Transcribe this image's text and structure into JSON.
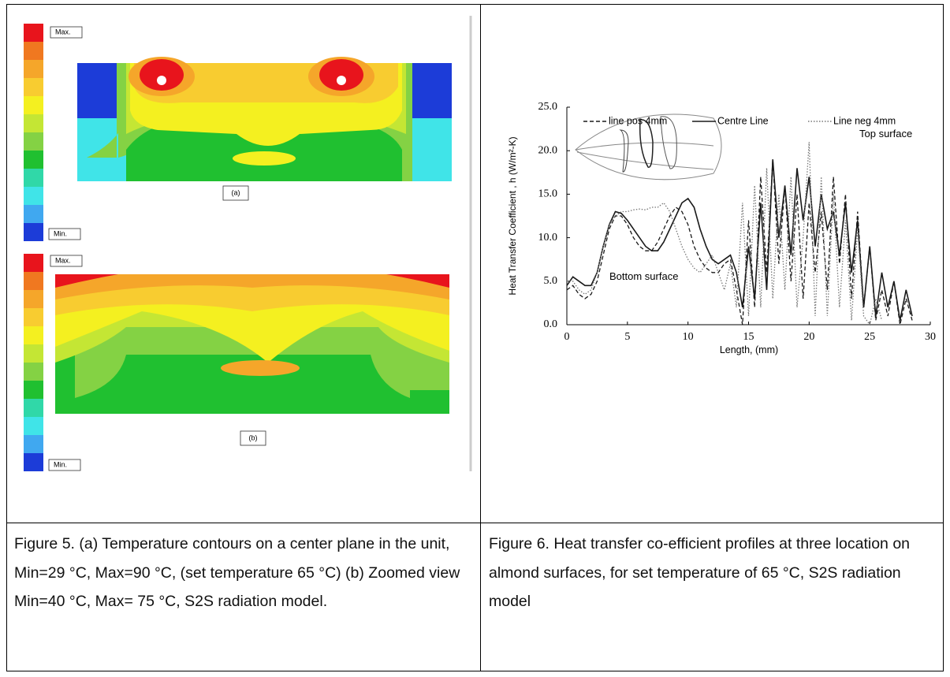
{
  "figure5": {
    "panels": [
      {
        "max_label": "Max.",
        "min_label": "Min.",
        "tag": "(a)"
      },
      {
        "max_label": "Max.",
        "min_label": "Min.",
        "tag": "(b)"
      }
    ]
  },
  "chart_data": {
    "type": "line",
    "x_label": "Length, (mm)",
    "y_label": "Heat Transfer Coefficient , h (W/m²-K)",
    "annotations": [
      "Top surface",
      "Bottom surface"
    ],
    "xlim": [
      0,
      30
    ],
    "xticks": [
      0,
      5,
      10,
      15,
      20,
      25,
      30
    ],
    "ylim": [
      0,
      25
    ],
    "yticks": [
      {
        "value": 0,
        "label": "0.0"
      },
      {
        "value": 5,
        "label": "5.0"
      },
      {
        "value": 10,
        "label": "10.0"
      },
      {
        "value": 15,
        "label": "15.0"
      },
      {
        "value": 20,
        "label": "20.0"
      },
      {
        "value": 25,
        "label": "25.0"
      }
    ],
    "grid": false,
    "x": [
      0,
      0.5,
      1,
      1.5,
      2,
      2.5,
      3,
      3.5,
      4,
      4.5,
      5,
      5.5,
      6,
      6.5,
      7,
      7.5,
      8,
      8.5,
      9,
      9.5,
      10,
      10.5,
      11,
      11.5,
      12,
      12.5,
      13,
      13.5,
      14,
      14.5,
      15,
      15.5,
      16,
      16.5,
      17,
      17.5,
      18,
      18.5,
      19,
      19.5,
      20,
      20.5,
      21,
      21.5,
      22,
      22.5,
      23,
      23.5,
      24,
      24.5,
      25,
      25.5,
      26,
      26.5,
      27,
      27.5,
      28,
      28.5
    ],
    "series": [
      {
        "name": "line pos 4mm",
        "color": "#1a1a1a",
        "dash": "dashed",
        "values": [
          4,
          4.5,
          3.5,
          3,
          3.5,
          5,
          8,
          11,
          12.5,
          12.5,
          11.5,
          10,
          9,
          8.5,
          8.5,
          9.5,
          11,
          12.5,
          13.5,
          13,
          11.5,
          9,
          7.5,
          6.5,
          6,
          6,
          7,
          7.5,
          4,
          0,
          12,
          2,
          17,
          6,
          19,
          7,
          16,
          5,
          15,
          3,
          14,
          6,
          13,
          4,
          17,
          7,
          15,
          3,
          13,
          2,
          9,
          0.5,
          4,
          1,
          5,
          0,
          3,
          0.5
        ]
      },
      {
        "name": "Centre Line",
        "color": "#1a1a1a",
        "dash": "solid",
        "values": [
          4.5,
          5.5,
          5,
          4.5,
          4.5,
          6,
          9,
          11.5,
          13,
          12.8,
          12,
          11,
          10,
          9,
          8.5,
          8.5,
          9.5,
          11,
          12.5,
          14,
          14.5,
          13.5,
          11,
          9,
          7.5,
          7,
          7.5,
          8,
          6,
          2,
          9,
          3,
          14,
          4,
          19,
          10,
          16,
          8,
          18,
          12,
          17,
          9,
          15,
          11,
          13,
          8,
          14,
          6,
          12,
          2,
          9,
          1,
          6,
          2,
          5,
          0.5,
          4,
          1
        ]
      },
      {
        "name": "Line neg 4mm",
        "color": "#777777",
        "dash": "dotted",
        "values": [
          5,
          5,
          4,
          3.5,
          4,
          6,
          9,
          11.5,
          12.5,
          13,
          13,
          13.2,
          13.3,
          13.2,
          13.5,
          13.5,
          14,
          13,
          11,
          9,
          7.5,
          6.5,
          6,
          7,
          8,
          6,
          4,
          7,
          2,
          14,
          1,
          16,
          2,
          18,
          3,
          15,
          4,
          17,
          2,
          10,
          21,
          1,
          17,
          1,
          15,
          2,
          12,
          0.5,
          11,
          1,
          0,
          3,
          0.5,
          null,
          null,
          null,
          null,
          null
        ]
      }
    ]
  },
  "captions": [
    "Figure 5. (a) Temperature contours on a center plane in the unit, Min=29 °C, Max=90  °C, (set temperature 65 °C) (b) Zoomed view Min=40 °C, Max= 75 °C, S2S radiation model.",
    "Figure 6. Heat transfer co-efficient profiles at three location on almond surfaces, for set temperature of 65 °C, S2S radiation model"
  ]
}
